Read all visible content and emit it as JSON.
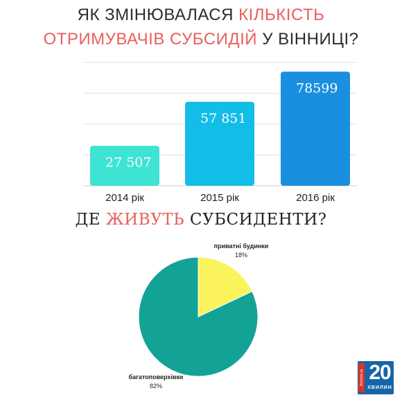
{
  "title": {
    "line1_pre": "ЯК ЗМІНЮВАЛАСЯ ",
    "line1_hl": "КІЛЬКІСТЬ",
    "line2_hl": "ОТРИМУВАЧІВ СУБСИДІЙ",
    "line2_post": " У ВІННИЦІ?"
  },
  "subtitle": {
    "pre": "ДЕ ",
    "hl": "ЖИВУТЬ",
    "post": " СУБСИДЕНТИ?"
  },
  "colors": {
    "highlight": "#e8605d",
    "bar_2014": "#3de3d3",
    "bar_2015": "#12bde8",
    "bar_2016": "#1a8fe0",
    "gridline": "#dddddd",
    "pie_multi": "#13a396",
    "pie_private": "#fbf35c"
  },
  "chart_data": [
    {
      "type": "bar",
      "categories": [
        "2014 рік",
        "2015 рік",
        "2016 рік"
      ],
      "values": [
        27507,
        57851,
        78599
      ],
      "value_labels": [
        "27 507",
        "57 851",
        "78599"
      ],
      "ylim": [
        0,
        85000
      ],
      "grid": true
    },
    {
      "type": "pie",
      "slices": [
        {
          "name": "приватні будинки",
          "value": 18,
          "label": "18%"
        },
        {
          "name": "багатоповерхівки",
          "value": 82,
          "label": "82%"
        }
      ]
    }
  ],
  "logo": {
    "number": "20",
    "word": "ХВИЛИН",
    "side_text": "20minut.ua",
    "icon": "20-khvylyn-logo"
  }
}
